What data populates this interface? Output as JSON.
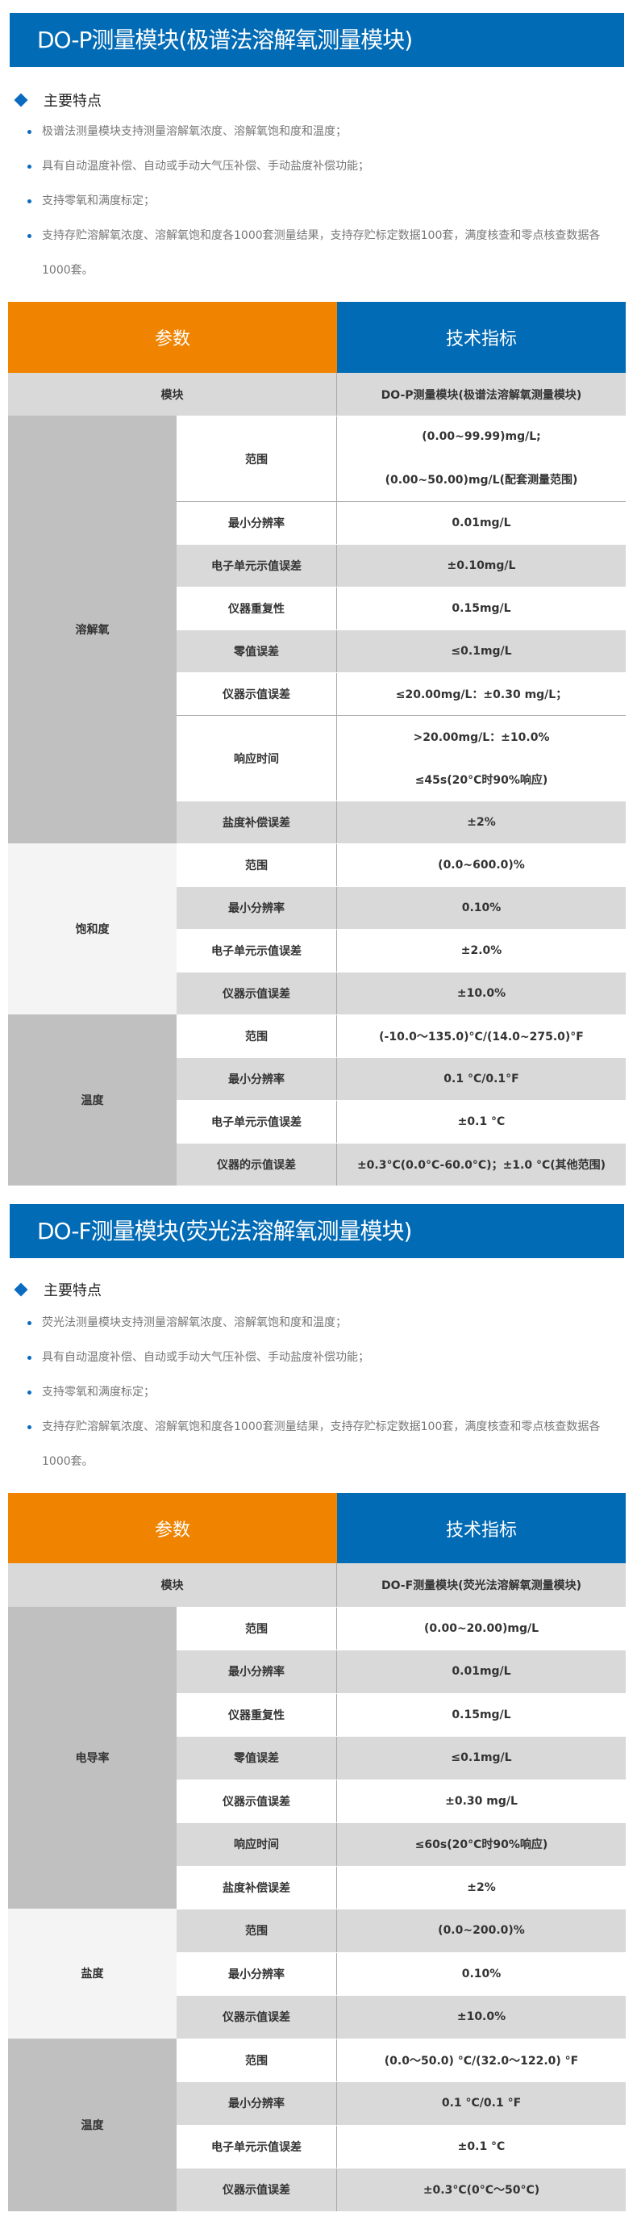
{
  "sections": [
    {
      "title": "DO-P测量模块(极谱法溶解氧测量模块)",
      "features_title": "主要特点",
      "features": [
        "极谱法测量模块支持测量溶解氧浓度、溶解氧饱和度和温度；",
        "具有自动温度补偿、自动或手动大气压补偿、手动盐度补偿功能；",
        "支持零氧和满度标定；",
        "支持存贮溶解氧浓度、溶解氧饱和度各1000套测量结果，支持存贮标定数据100套，满度核查和零点核查数据各1000套。"
      ],
      "table": {
        "header": [
          "参数",
          "技术指标"
        ],
        "module": [
          "模块",
          "DO-P测量模块(极谱法溶解氧测量模块)"
        ],
        "groups": [
          {
            "name": "溶解氧",
            "bg": "#c0c0c0",
            "rows": [
              {
                "param": "范围",
                "values": [
                  "(0.00~99.99)mg/L;",
                  "(0.00~50.00)mg/L(配套测量范围)"
                ],
                "shaded": false
              },
              {
                "param": "最小分辨率",
                "values": [
                  "0.01mg/L"
                ],
                "shaded": false,
                "line": true
              },
              {
                "param": "电子单元示值误差",
                "values": [
                  "±0.10mg/L"
                ],
                "shaded": true
              },
              {
                "param": "仪器重复性",
                "values": [
                  "0.15mg/L"
                ],
                "shaded": false
              },
              {
                "param": "零值误差",
                "values": [
                  "≤0.1mg/L"
                ],
                "shaded": true
              },
              {
                "param": "仪器示值误差",
                "values": [
                  "≤20.00mg/L：±0.30 mg/L；"
                ],
                "shaded": false
              },
              {
                "param": "响应时间",
                "values": [
                  ">20.00mg/L：±10.0%",
                  "≤45s(20°C时90%响应)"
                ],
                "shaded": false,
                "line": true
              },
              {
                "param": "盐度补偿误差",
                "values": [
                  "±2%"
                ],
                "shaded": true
              }
            ]
          },
          {
            "name": "饱和度",
            "bg": "#f4f4f4",
            "rows": [
              {
                "param": "范围",
                "values": [
                  "(0.0~600.0)%"
                ],
                "shaded": false
              },
              {
                "param": "最小分辨率",
                "values": [
                  "0.10%"
                ],
                "shaded": true
              },
              {
                "param": "电子单元示值误差",
                "values": [
                  "±2.0%"
                ],
                "shaded": false
              },
              {
                "param": "仪器示值误差",
                "values": [
                  "±10.0%"
                ],
                "shaded": true
              }
            ]
          },
          {
            "name": "温度",
            "bg": "#c0c0c0",
            "rows": [
              {
                "param": "范围",
                "values": [
                  "(-10.0～135.0)°C/(14.0~275.0)°F"
                ],
                "shaded": false
              },
              {
                "param": "最小分辨率",
                "values": [
                  "0.1 °C/0.1°F"
                ],
                "shaded": true
              },
              {
                "param": "电子单元示值误差",
                "values": [
                  "±0.1 °C"
                ],
                "shaded": false
              },
              {
                "param": "仪器的示值误差",
                "values": [
                  "±0.3°C(0.0°C-60.0°C)；±1.0 °C(其他范围)"
                ],
                "shaded": true
              }
            ]
          }
        ]
      }
    },
    {
      "title": "DO-F测量模块(荧光法溶解氧测量模块)",
      "features_title": "主要特点",
      "features": [
        "荧光法测量模块支持测量溶解氧浓度、溶解氧饱和度和温度；",
        "具有自动温度补偿、自动或手动大气压补偿、手动盐度补偿功能；",
        "支持零氧和满度标定；",
        "支持存贮溶解氧浓度、溶解氧饱和度各1000套测量结果，支持存贮标定数据100套，满度核查和零点核查数据各1000套。"
      ],
      "table": {
        "header": [
          "参数",
          "技术指标"
        ],
        "module": [
          "模块",
          "DO-F测量模块(荧光法溶解氧测量模块)"
        ],
        "groups": [
          {
            "name": "电导率",
            "bg": "#c0c0c0",
            "rows": [
              {
                "param": "范围",
                "values": [
                  "(0.00~20.00)mg/L"
                ],
                "shaded": false
              },
              {
                "param": "最小分辨率",
                "values": [
                  "0.01mg/L"
                ],
                "shaded": true
              },
              {
                "param": "仪器重复性",
                "values": [
                  "0.15mg/L"
                ],
                "shaded": false
              },
              {
                "param": "零值误差",
                "values": [
                  "≤0.1mg/L"
                ],
                "shaded": true
              },
              {
                "param": "仪器示值误差",
                "values": [
                  "±0.30 mg/L"
                ],
                "shaded": false
              },
              {
                "param": "响应时间",
                "values": [
                  "≤60s(20°C时90%响应)"
                ],
                "shaded": true
              },
              {
                "param": "盐度补偿误差",
                "values": [
                  "±2%"
                ],
                "shaded": false
              }
            ]
          },
          {
            "name": "盐度",
            "bg": "#f4f4f4",
            "rows": [
              {
                "param": "范围",
                "values": [
                  "(0.0~200.0)%"
                ],
                "shaded": true
              },
              {
                "param": "最小分辨率",
                "values": [
                  "0.10%"
                ],
                "shaded": false
              },
              {
                "param": "仪器示值误差",
                "values": [
                  "±10.0%"
                ],
                "shaded": true
              }
            ]
          },
          {
            "name": "温度",
            "bg": "#c0c0c0",
            "rows": [
              {
                "param": "范围",
                "values": [
                  "(0.0～50.0) °C/(32.0～122.0) °F"
                ],
                "shaded": false
              },
              {
                "param": "最小分辨率",
                "values": [
                  "0.1 °C/0.1 °F"
                ],
                "shaded": true
              },
              {
                "param": "电子单元示值误差",
                "values": [
                  "±0.1 °C"
                ],
                "shaded": false
              },
              {
                "param": "仪器示值误差",
                "values": [
                  "±0.3°C(0°C～50°C)"
                ],
                "shaded": true
              }
            ]
          }
        ]
      }
    }
  ]
}
